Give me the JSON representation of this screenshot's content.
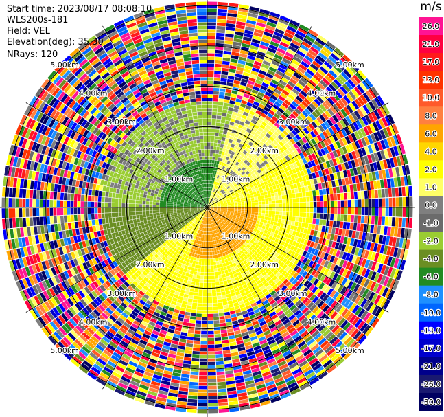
{
  "header": {
    "start_time": "Start time: 2023/08/17 08:08:10",
    "instrument": "WLS200s-181",
    "field": "Field: VEL",
    "elevation": "Elevation(deg): 35.30",
    "nrays": "NRays: 120"
  },
  "colorbar": {
    "unit": "m/s",
    "levels": [
      {
        "label": "26.0",
        "color": "#ff1493"
      },
      {
        "label": "21.0",
        "color": "#ff0040"
      },
      {
        "label": "17.0",
        "color": "#ff1a1a"
      },
      {
        "label": "13.0",
        "color": "#ff3300"
      },
      {
        "label": "10.0",
        "color": "#ff5a2a"
      },
      {
        "label": "8.0",
        "color": "#ff8040"
      },
      {
        "label": "6.0",
        "color": "#ffa500"
      },
      {
        "label": "4.0",
        "color": "#ffd700"
      },
      {
        "label": "2.0",
        "color": "#ffff00"
      },
      {
        "label": "1.0",
        "color": "#ffff66"
      },
      {
        "label": "0.0",
        "color": "#7f7f7f"
      },
      {
        "label": "-1.0",
        "color": "#6b6b6b"
      },
      {
        "label": "-2.0",
        "color": "#9acd32"
      },
      {
        "label": "-4.0",
        "color": "#6b8e23"
      },
      {
        "label": "-6.0",
        "color": "#228b22"
      },
      {
        "label": "-8.0",
        "color": "#1e90ff"
      },
      {
        "label": "-10.0",
        "color": "#0066ff"
      },
      {
        "label": "-13.0",
        "color": "#0000ff"
      },
      {
        "label": "-17.0",
        "color": "#0000cd"
      },
      {
        "label": "-21.0",
        "color": "#00008b"
      },
      {
        "label": "-26.0",
        "color": "#191970"
      },
      {
        "label": "-30.0",
        "color": "#000060"
      }
    ]
  },
  "chart_data": {
    "type": "heatmap",
    "projection": "polar PPI",
    "field": "VEL",
    "units": "m/s",
    "elevation_deg": 35.3,
    "n_rays": 120,
    "range_rings_km": [
      1.0,
      2.0,
      3.0,
      4.0,
      5.0
    ],
    "ring_labels": [
      "1.00km",
      "2.00km",
      "3.00km",
      "4.00km",
      "5.00km"
    ],
    "azimuth_spokes_deg": [
      0,
      30,
      60,
      90,
      120,
      150,
      180,
      210,
      240,
      270,
      300,
      330
    ],
    "max_range_km": 5.1,
    "regions": [
      {
        "sector": "north-west, near range",
        "range_km": [
          0,
          1.2
        ],
        "velocity_ms": -6.0
      },
      {
        "sector": "west/north, mid range",
        "range_km": [
          0.8,
          2.2
        ],
        "velocity_ms": -2.0
      },
      {
        "sector": "south-west, mid range",
        "range_km": [
          1.5,
          2.5
        ],
        "velocity_ms": -4.0
      },
      {
        "sector": "east/south-east, near range",
        "range_km": [
          0,
          1.3
        ],
        "velocity_ms": 6.0
      },
      {
        "sector": "east/south, mid range",
        "range_km": [
          0.5,
          2.2
        ],
        "velocity_ms": 2.0
      },
      {
        "sector": "north/north-east, mid range",
        "range_km": [
          1.5,
          2.7
        ],
        "velocity_ms": 1.0
      },
      {
        "sector": "all azimuths, far range",
        "range_km": [
          2.5,
          5.1
        ],
        "velocity_ms": "noise (random across full scale)"
      }
    ]
  }
}
